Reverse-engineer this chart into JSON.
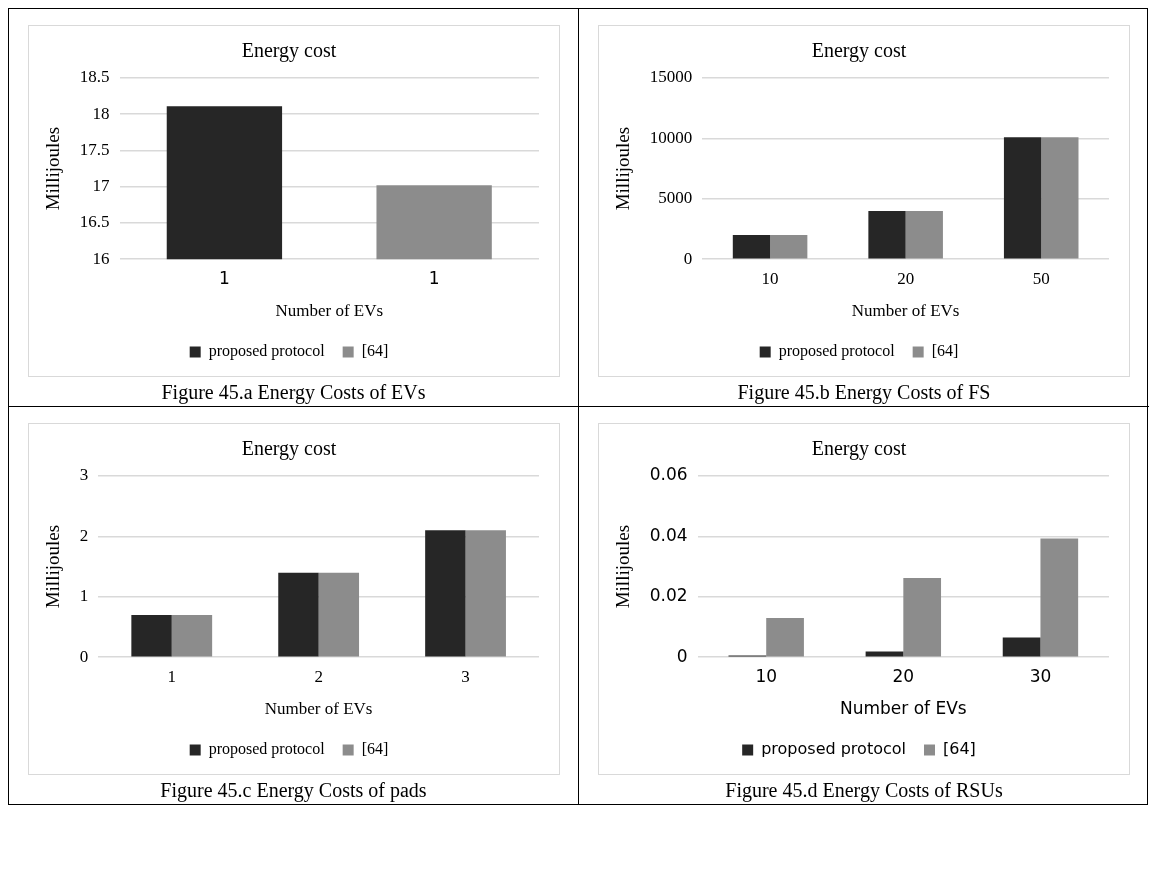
{
  "chart_data": [
    {
      "type": "bar",
      "title": "Energy cost",
      "xlabel": "Number of EVs",
      "ylabel": "Millijoules",
      "categories": [
        "1",
        "1"
      ],
      "series": [
        {
          "name": "proposed protocol",
          "color": "#262626",
          "values": [
            18.11,
            null
          ]
        },
        {
          "name": "[64]",
          "color": "#8c8c8c",
          "values": [
            null,
            17.02
          ]
        }
      ],
      "ylim": [
        16,
        18.5
      ],
      "yticks": [
        16,
        16.5,
        17,
        17.5,
        18,
        18.5
      ],
      "grid": "y",
      "legend": "bottom",
      "annotations": [
        "Figure 45.a  Energy Costs of EVs"
      ]
    },
    {
      "type": "bar",
      "title": "Energy cost",
      "xlabel": "Number of EVs",
      "ylabel": "Millijoules",
      "categories": [
        "10",
        "20",
        "50"
      ],
      "series": [
        {
          "name": "proposed protocol",
          "color": "#262626",
          "values": [
            2000,
            4000,
            10100
          ]
        },
        {
          "name": "[64]",
          "color": "#8c8c8c",
          "values": [
            2000,
            4000,
            10100
          ]
        }
      ],
      "ylim": [
        0,
        15000
      ],
      "yticks": [
        0,
        5000,
        10000,
        15000
      ],
      "grid": "y",
      "legend": "bottom",
      "annotations": [
        "Figure 45.b  Energy Costs of FS"
      ]
    },
    {
      "type": "bar",
      "title": "Energy cost",
      "xlabel": "Number of EVs",
      "ylabel": "Millijoules",
      "categories": [
        "1",
        "2",
        "3"
      ],
      "series": [
        {
          "name": "proposed protocol",
          "color": "#262626",
          "values": [
            0.7,
            1.4,
            2.1
          ]
        },
        {
          "name": "[64]",
          "color": "#8c8c8c",
          "values": [
            0.7,
            1.4,
            2.1
          ]
        }
      ],
      "ylim": [
        0,
        3
      ],
      "yticks": [
        0,
        1,
        2,
        3
      ],
      "grid": "y",
      "legend": "bottom",
      "annotations": [
        "Figure 45.c  Energy Costs of pads"
      ]
    },
    {
      "type": "bar",
      "title": "Energy cost",
      "xlabel": "Number of EVs",
      "ylabel": "Millijoules",
      "categories": [
        "10",
        "20",
        "30"
      ],
      "series": [
        {
          "name": "proposed protocol",
          "color": "#262626",
          "values": [
            0.0006,
            0.0019,
            0.0065
          ]
        },
        {
          "name": "[64]",
          "color": "#8c8c8c",
          "values": [
            0.013,
            0.0262,
            0.0393
          ]
        }
      ],
      "ylim": [
        0,
        0.06
      ],
      "yticks": [
        0,
        0.02,
        0.04,
        0.06
      ],
      "grid": "y",
      "legend": "bottom",
      "annotations": [
        "Figure 45.d  Energy Costs of RSUs"
      ]
    }
  ]
}
